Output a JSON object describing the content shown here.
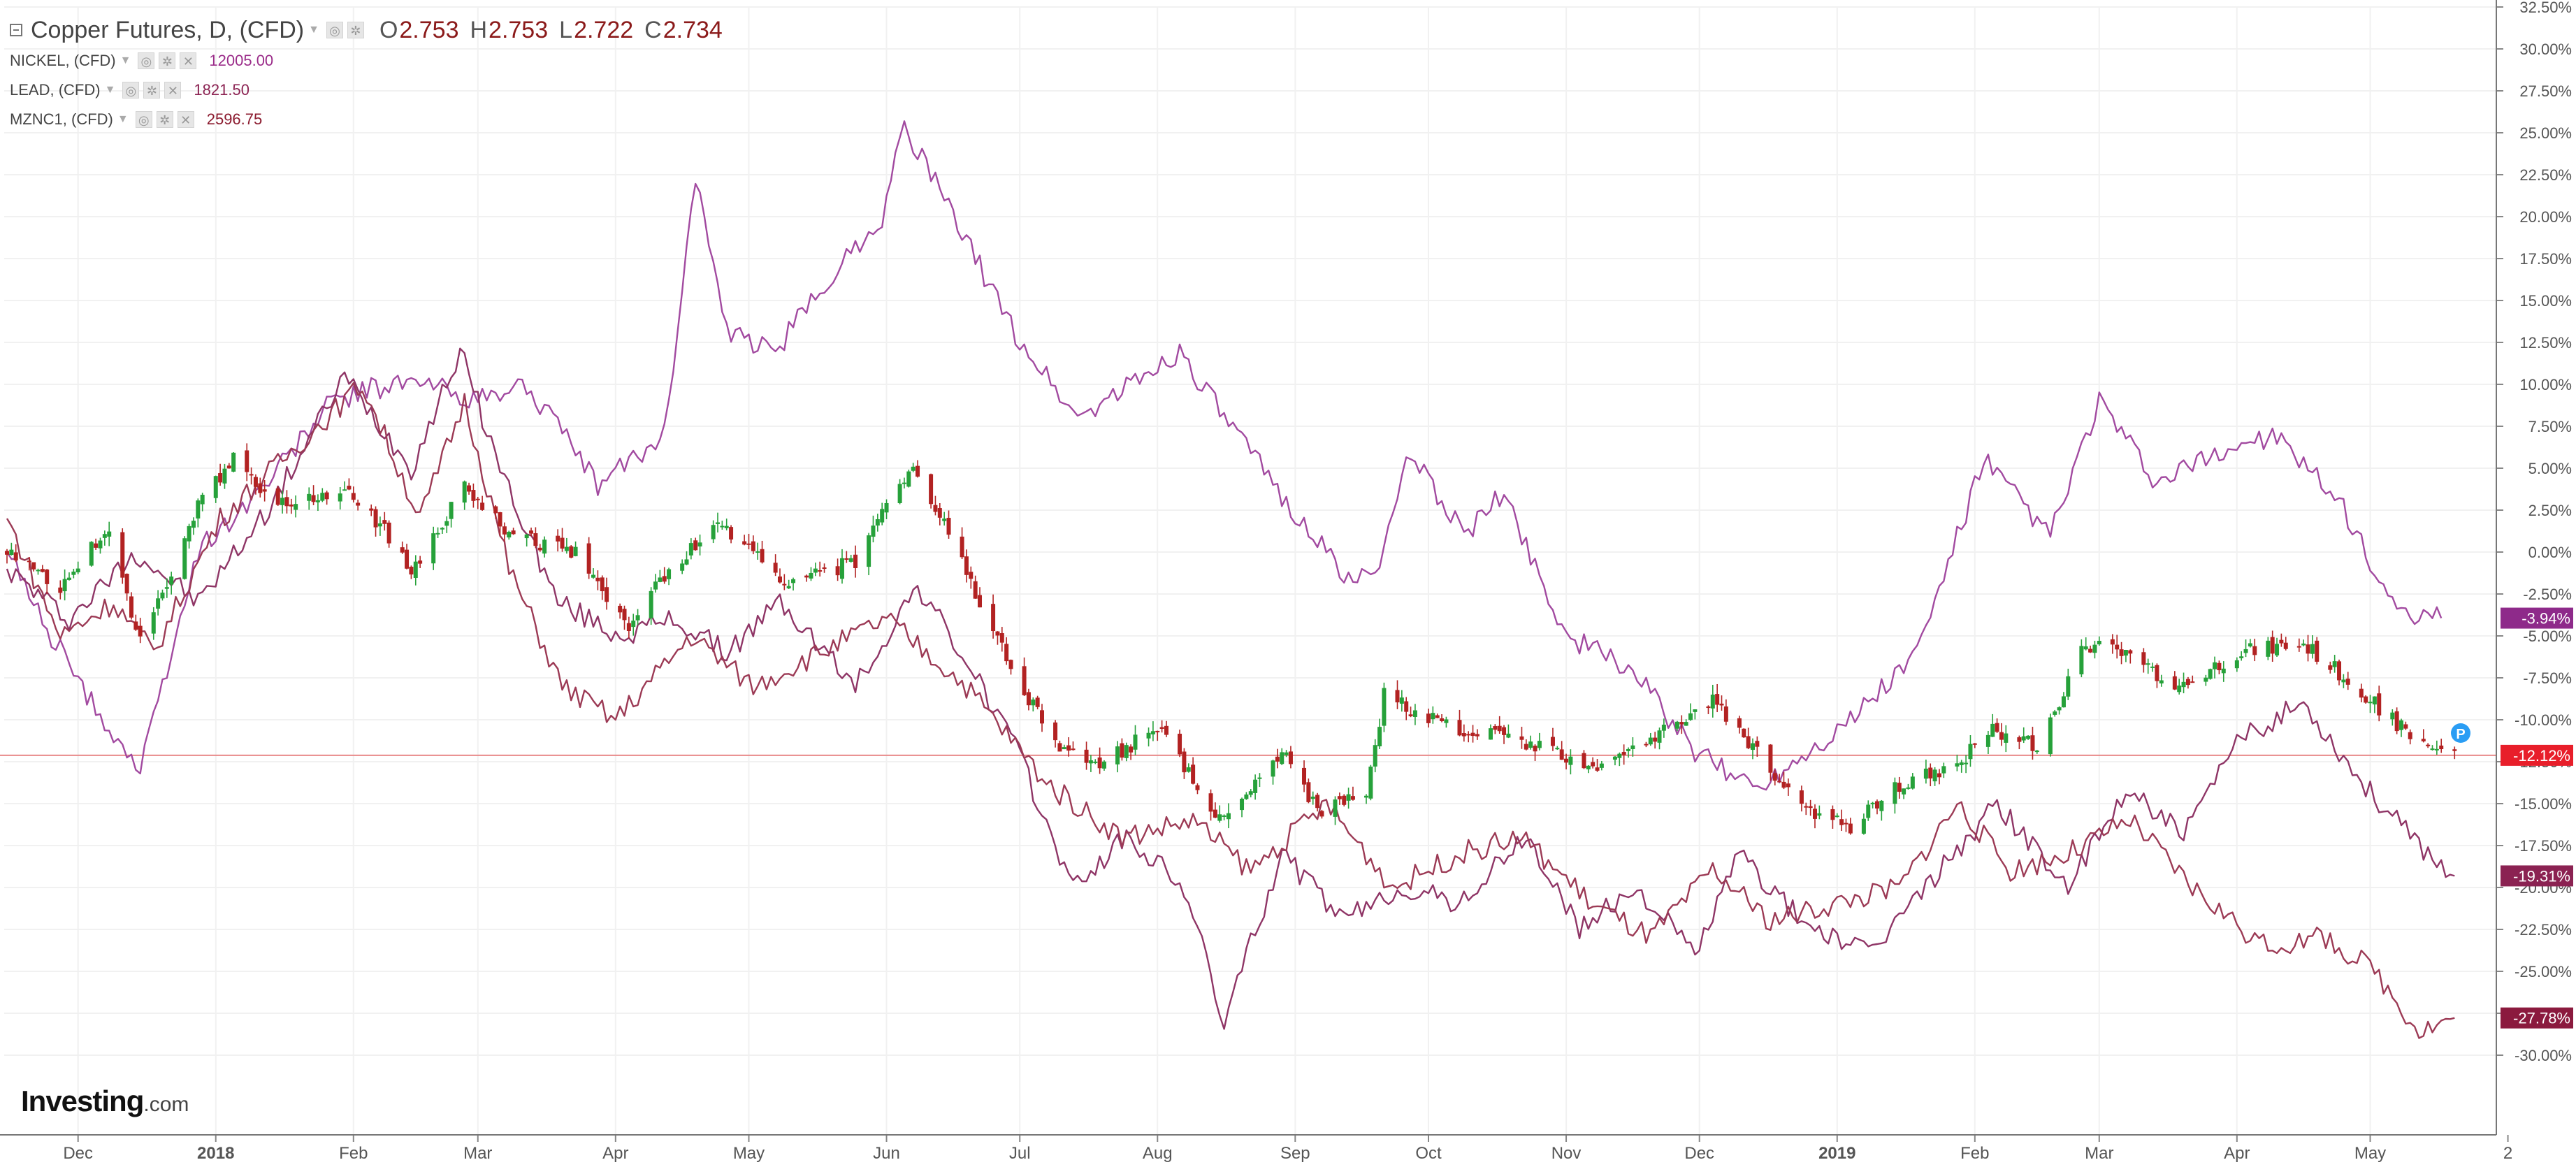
{
  "legend": {
    "main": {
      "symbol": "Copper Futures, D, (CFD)",
      "o_label": "O",
      "o_value": "2.753",
      "h_label": "H",
      "h_value": "2.753",
      "l_label": "L",
      "l_value": "2.722",
      "c_label": "C",
      "c_value": "2.734"
    },
    "comparisons": [
      {
        "symbol": "NICKEL, (CFD)",
        "value": "12005.00",
        "color": "#9b2d8a"
      },
      {
        "symbol": "LEAD, (CFD)",
        "value": "1821.50",
        "color": "#8b2252"
      },
      {
        "symbol": "MZNC1, (CFD)",
        "value": "2596.75",
        "color": "#8b1a2e"
      }
    ]
  },
  "watermark": {
    "brand": "Investing",
    "suffix": ".com"
  },
  "chart_data": {
    "type": "line",
    "title": "Copper Futures, D, (CFD)",
    "x_range": [
      "2017-11-15",
      "2019-05-22"
    ],
    "x_tick_labels": [
      {
        "label": "Dec",
        "date": "2017-12-01",
        "bold": false
      },
      {
        "label": "2018",
        "date": "2018-01-01",
        "bold": true
      },
      {
        "label": "Feb",
        "date": "2018-02-01",
        "bold": false
      },
      {
        "label": "Mar",
        "date": "2018-03-01",
        "bold": false
      },
      {
        "label": "Apr",
        "date": "2018-04-01",
        "bold": false
      },
      {
        "label": "May",
        "date": "2018-05-01",
        "bold": false
      },
      {
        "label": "Jun",
        "date": "2018-06-01",
        "bold": false
      },
      {
        "label": "Jul",
        "date": "2018-07-01",
        "bold": false
      },
      {
        "label": "Aug",
        "date": "2018-08-01",
        "bold": false
      },
      {
        "label": "Sep",
        "date": "2018-09-01",
        "bold": false
      },
      {
        "label": "Oct",
        "date": "2018-10-01",
        "bold": false
      },
      {
        "label": "Nov",
        "date": "2018-11-01",
        "bold": false
      },
      {
        "label": "Dec",
        "date": "2018-12-01",
        "bold": false
      },
      {
        "label": "2019",
        "date": "2019-01-01",
        "bold": true
      },
      {
        "label": "Feb",
        "date": "2019-02-01",
        "bold": false
      },
      {
        "label": "Mar",
        "date": "2019-03-01",
        "bold": false
      },
      {
        "label": "Apr",
        "date": "2019-04-01",
        "bold": false
      },
      {
        "label": "May",
        "date": "2019-05-01",
        "bold": false
      },
      {
        "label": "2",
        "date": "2019-06-01",
        "bold": false
      }
    ],
    "y_axis": {
      "unit": "percent",
      "range": [
        -32.5,
        32.5
      ],
      "ticks": [
        "32.50%",
        "30.00%",
        "27.50%",
        "25.00%",
        "22.50%",
        "20.00%",
        "17.50%",
        "15.00%",
        "12.50%",
        "10.00%",
        "7.50%",
        "5.00%",
        "2.50%",
        "0.00%",
        "-2.50%",
        "-5.00%",
        "-7.50%",
        "-10.00%",
        "-12.50%",
        "-15.00%",
        "-17.50%",
        "-20.00%",
        "-22.50%",
        "-25.00%",
        "-27.50%",
        "-30.00%"
      ]
    },
    "grid": true,
    "reference_line": {
      "value": -12.12,
      "color": "#e88a8a"
    },
    "last_value_badges": [
      {
        "label": "-3.94%",
        "value": -3.94,
        "color": "#8e2a8a"
      },
      {
        "label": "-12.12%",
        "value": -12.12,
        "color": "#e81e2a"
      },
      {
        "label": "-19.31%",
        "value": -19.31,
        "color": "#8b2252"
      },
      {
        "label": "-27.78%",
        "value": -27.78,
        "color": "#8b1a3e"
      }
    ],
    "series": [
      {
        "name": "Copper Futures, D, (CFD)",
        "kind": "candlestick",
        "up_color": "#26a13a",
        "down_color": "#b22222",
        "points": [
          [
            "2017-11-15",
            0
          ],
          [
            "2017-11-27",
            -2
          ],
          [
            "2017-12-08",
            1.5
          ],
          [
            "2017-12-15",
            -5.5
          ],
          [
            "2017-12-29",
            3.5
          ],
          [
            "2018-01-05",
            5.5
          ],
          [
            "2018-01-15",
            3
          ],
          [
            "2018-01-30",
            3.5
          ],
          [
            "2018-02-09",
            1
          ],
          [
            "2018-02-14",
            -1.5
          ],
          [
            "2018-02-26",
            4
          ],
          [
            "2018-03-09",
            1
          ],
          [
            "2018-03-23",
            0
          ],
          [
            "2018-04-04",
            -4.5
          ],
          [
            "2018-04-13",
            -1
          ],
          [
            "2018-04-24",
            1.5
          ],
          [
            "2018-05-11",
            -2
          ],
          [
            "2018-05-25",
            -0.5
          ],
          [
            "2018-06-07",
            5.5
          ],
          [
            "2018-06-14",
            1.5
          ],
          [
            "2018-06-29",
            -7
          ],
          [
            "2018-07-10",
            -12
          ],
          [
            "2018-07-20",
            -12.5
          ],
          [
            "2018-08-01",
            -10.5
          ],
          [
            "2018-08-15",
            -16
          ],
          [
            "2018-08-30",
            -12
          ],
          [
            "2018-09-06",
            -15.5
          ],
          [
            "2018-09-17",
            -14.5
          ],
          [
            "2018-09-21",
            -8.5
          ],
          [
            "2018-10-02",
            -10
          ],
          [
            "2018-10-15",
            -11
          ],
          [
            "2018-10-26",
            -11.5
          ],
          [
            "2018-11-05",
            -13
          ],
          [
            "2018-11-15",
            -12
          ],
          [
            "2018-12-04",
            -9
          ],
          [
            "2018-12-14",
            -12
          ],
          [
            "2018-12-21",
            -14.5
          ],
          [
            "2019-01-03",
            -16.5
          ],
          [
            "2019-01-15",
            -14
          ],
          [
            "2019-01-29",
            -12.5
          ],
          [
            "2019-02-05",
            -10.5
          ],
          [
            "2019-02-15",
            -11.5
          ],
          [
            "2019-02-26",
            -5.5
          ],
          [
            "2019-03-05",
            -6
          ],
          [
            "2019-03-20",
            -8
          ],
          [
            "2019-04-01",
            -6
          ],
          [
            "2019-04-16",
            -5.5
          ],
          [
            "2019-04-30",
            -8.5
          ],
          [
            "2019-05-10",
            -11
          ],
          [
            "2019-05-20",
            -12.12
          ]
        ]
      },
      {
        "name": "NICKEL, (CFD)",
        "color": "#a24aa0",
        "points": [
          [
            "2017-11-15",
            0
          ],
          [
            "2017-11-25",
            -5
          ],
          [
            "2017-12-04",
            -9
          ],
          [
            "2017-12-15",
            -13
          ],
          [
            "2017-12-28",
            0
          ],
          [
            "2018-01-12",
            4
          ],
          [
            "2018-01-27",
            9
          ],
          [
            "2018-02-09",
            10
          ],
          [
            "2018-02-19",
            10
          ],
          [
            "2018-03-01",
            9
          ],
          [
            "2018-03-12",
            10
          ],
          [
            "2018-03-28",
            4
          ],
          [
            "2018-04-12",
            7
          ],
          [
            "2018-04-19",
            22.5
          ],
          [
            "2018-04-26",
            13
          ],
          [
            "2018-05-07",
            12
          ],
          [
            "2018-05-21",
            17
          ],
          [
            "2018-05-31",
            20
          ],
          [
            "2018-06-05",
            25.5
          ],
          [
            "2018-06-16",
            20
          ],
          [
            "2018-06-30",
            13
          ],
          [
            "2018-07-14",
            8
          ],
          [
            "2018-07-26",
            10
          ],
          [
            "2018-08-06",
            12
          ],
          [
            "2018-08-16",
            8
          ],
          [
            "2018-08-30",
            3
          ],
          [
            "2018-09-14",
            -2
          ],
          [
            "2018-09-21",
            0
          ],
          [
            "2018-09-27",
            6
          ],
          [
            "2018-10-09",
            1
          ],
          [
            "2018-10-18",
            3.5
          ],
          [
            "2018-11-01",
            -5
          ],
          [
            "2018-11-16",
            -7
          ],
          [
            "2018-11-30",
            -12
          ],
          [
            "2018-12-14",
            -14
          ],
          [
            "2019-01-04",
            -10
          ],
          [
            "2019-01-19",
            -6
          ],
          [
            "2019-02-03",
            5.5
          ],
          [
            "2019-02-18",
            1
          ],
          [
            "2019-03-01",
            9
          ],
          [
            "2019-03-14",
            4
          ],
          [
            "2019-03-28",
            6
          ],
          [
            "2019-04-09",
            7
          ],
          [
            "2019-04-24",
            3
          ],
          [
            "2019-05-08",
            -4
          ],
          [
            "2019-05-17",
            -3.94
          ]
        ]
      },
      {
        "name": "LEAD, (CFD)",
        "color": "#8f3566",
        "points": [
          [
            "2017-11-15",
            -1
          ],
          [
            "2017-11-29",
            -4
          ],
          [
            "2017-12-14",
            0
          ],
          [
            "2017-12-28",
            -3
          ],
          [
            "2018-01-14",
            3
          ],
          [
            "2018-01-30",
            10.5
          ],
          [
            "2018-02-14",
            5
          ],
          [
            "2018-02-25",
            12
          ],
          [
            "2018-03-06",
            5
          ],
          [
            "2018-03-19",
            -3
          ],
          [
            "2018-04-02",
            -5
          ],
          [
            "2018-04-14",
            -4
          ],
          [
            "2018-04-26",
            -6
          ],
          [
            "2018-05-08",
            -3
          ],
          [
            "2018-05-25",
            -8
          ],
          [
            "2018-06-08",
            -2
          ],
          [
            "2018-06-20",
            -7
          ],
          [
            "2018-06-29",
            -11
          ],
          [
            "2018-07-13",
            -20
          ],
          [
            "2018-07-25",
            -17
          ],
          [
            "2018-08-07",
            -20
          ],
          [
            "2018-08-16",
            -28
          ],
          [
            "2018-08-29",
            -18
          ],
          [
            "2018-09-12",
            -22
          ],
          [
            "2018-09-25",
            -20
          ],
          [
            "2018-10-08",
            -21
          ],
          [
            "2018-10-23",
            -17
          ],
          [
            "2018-11-04",
            -22.5
          ],
          [
            "2018-11-17",
            -20
          ],
          [
            "2018-11-30",
            -24
          ],
          [
            "2018-12-10",
            -18
          ],
          [
            "2018-12-24",
            -22
          ],
          [
            "2019-01-08",
            -24
          ],
          [
            "2019-01-24",
            -19
          ],
          [
            "2019-02-06",
            -15
          ],
          [
            "2019-02-22",
            -20
          ],
          [
            "2019-03-08",
            -14
          ],
          [
            "2019-03-20",
            -17
          ],
          [
            "2019-04-02",
            -11
          ],
          [
            "2019-04-16",
            -9
          ],
          [
            "2019-04-30",
            -14
          ],
          [
            "2019-05-10",
            -17
          ],
          [
            "2019-05-20",
            -19.31
          ]
        ]
      },
      {
        "name": "MZNC1, (CFD)",
        "color": "#9c3a55",
        "points": [
          [
            "2017-11-15",
            2
          ],
          [
            "2017-11-27",
            -5
          ],
          [
            "2017-12-09",
            -3
          ],
          [
            "2017-12-18",
            -6
          ],
          [
            "2018-01-02",
            2
          ],
          [
            "2018-01-18",
            6
          ],
          [
            "2018-02-03",
            10
          ],
          [
            "2018-02-16",
            2
          ],
          [
            "2018-02-26",
            9
          ],
          [
            "2018-03-08",
            -1
          ],
          [
            "2018-03-20",
            -8
          ],
          [
            "2018-04-01",
            -10
          ],
          [
            "2018-04-18",
            -5
          ],
          [
            "2018-05-02",
            -8
          ],
          [
            "2018-05-17",
            -6
          ],
          [
            "2018-06-01",
            -4
          ],
          [
            "2018-06-19",
            -8
          ],
          [
            "2018-07-08",
            -14
          ],
          [
            "2018-07-24",
            -17
          ],
          [
            "2018-08-09",
            -16
          ],
          [
            "2018-08-22",
            -19
          ],
          [
            "2018-09-08",
            -15
          ],
          [
            "2018-09-23",
            -20
          ],
          [
            "2018-10-08",
            -18
          ],
          [
            "2018-10-22",
            -17
          ],
          [
            "2018-11-07",
            -21
          ],
          [
            "2018-11-20",
            -23
          ],
          [
            "2018-12-04",
            -19
          ],
          [
            "2018-12-17",
            -22
          ],
          [
            "2018-12-31",
            -21
          ],
          [
            "2019-01-15",
            -20
          ],
          [
            "2019-01-28",
            -15
          ],
          [
            "2019-02-09",
            -19
          ],
          [
            "2019-02-22",
            -18
          ],
          [
            "2019-03-08",
            -16
          ],
          [
            "2019-03-22",
            -20
          ],
          [
            "2019-04-07",
            -23.5
          ],
          [
            "2019-04-21",
            -23
          ],
          [
            "2019-05-02",
            -25
          ],
          [
            "2019-05-12",
            -28.5
          ],
          [
            "2019-05-20",
            -27.78
          ]
        ]
      }
    ]
  }
}
